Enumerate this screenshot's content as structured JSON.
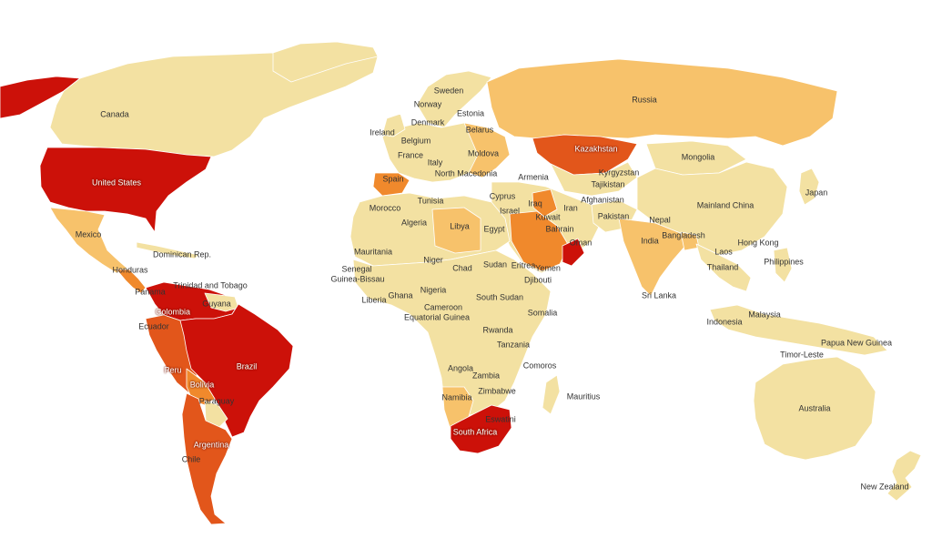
{
  "palette": {
    "c1": "#f3e1a2",
    "c2": "#f7c26b",
    "c3": "#f0892c",
    "c4": "#e2561b",
    "c5": "#cc1109",
    "nodata": "#ececec"
  },
  "labels": {
    "canada": "Canada",
    "united_states": "United States",
    "mexico": "Mexico",
    "dominican_rep": "Dominican Rep.",
    "honduras": "Honduras",
    "trinidad": "Trinidad and Tobago",
    "panama": "Panama",
    "guyana": "Guyana",
    "colombia": "Colombia",
    "ecuador": "Ecuador",
    "peru": "Peru",
    "brazil": "Brazil",
    "bolivia": "Bolivia",
    "paraguay": "Paraguay",
    "argentina": "Argentina",
    "chile": "Chile",
    "sweden": "Sweden",
    "norway": "Norway",
    "estonia": "Estonia",
    "denmark": "Denmark",
    "ireland": "Ireland",
    "belarus": "Belarus",
    "belgium": "Belgium",
    "moldova": "Moldova",
    "france": "France",
    "italy": "Italy",
    "north_macedonia": "North Macedonia",
    "spain": "Spain",
    "armenia": "Armenia",
    "russia": "Russia",
    "kazakhstan": "Kazakhstan",
    "kyrgyzstan": "Kyrgyzstan",
    "tajikistan": "Tajikistan",
    "mongolia": "Mongolia",
    "afghanistan": "Afghanistan",
    "japan": "Japan",
    "tunisia": "Tunisia",
    "cyprus": "Cyprus",
    "morocco": "Morocco",
    "israel": "Israel",
    "iraq": "Iraq",
    "iran": "Iran",
    "mainland_china": "Mainland China",
    "algeria": "Algeria",
    "libya": "Libya",
    "egypt": "Egypt",
    "kuwait": "Kuwait",
    "pakistan": "Pakistan",
    "nepal": "Nepal",
    "bahrain": "Bahrain",
    "india": "India",
    "bangladesh": "Bangladesh",
    "hong_kong": "Hong Kong",
    "oman": "Oman",
    "laos": "Laos",
    "mauritania": "Mauritania",
    "niger": "Niger",
    "chad": "Chad",
    "sudan": "Sudan",
    "eritrea": "Eritrea",
    "yemen": "Yemen",
    "thailand": "Thailand",
    "philippines": "Philippines",
    "senegal": "Senegal",
    "guinea_bissau": "Guinea-Bissau",
    "djibouti": "Djibouti",
    "nigeria": "Nigeria",
    "liberia": "Liberia",
    "ghana": "Ghana",
    "south_sudan": "South Sudan",
    "sri_lanka": "Sri Lanka",
    "cameroon": "Cameroon",
    "somalia": "Somalia",
    "equatorial_guinea": "Equatorial Guinea",
    "malaysia": "Malaysia",
    "indonesia": "Indonesia",
    "rwanda": "Rwanda",
    "papua_new_guinea": "Papua New Guinea",
    "tanzania": "Tanzania",
    "timor_leste": "Timor-Leste",
    "comoros": "Comoros",
    "angola": "Angola",
    "zambia": "Zambia",
    "mauritius": "Mauritius",
    "zimbabwe": "Zimbabwe",
    "namibia": "Namibia",
    "australia": "Australia",
    "eswatini": "Eswatini",
    "south_africa": "South Africa",
    "new_zealand": "New Zealand"
  }
}
